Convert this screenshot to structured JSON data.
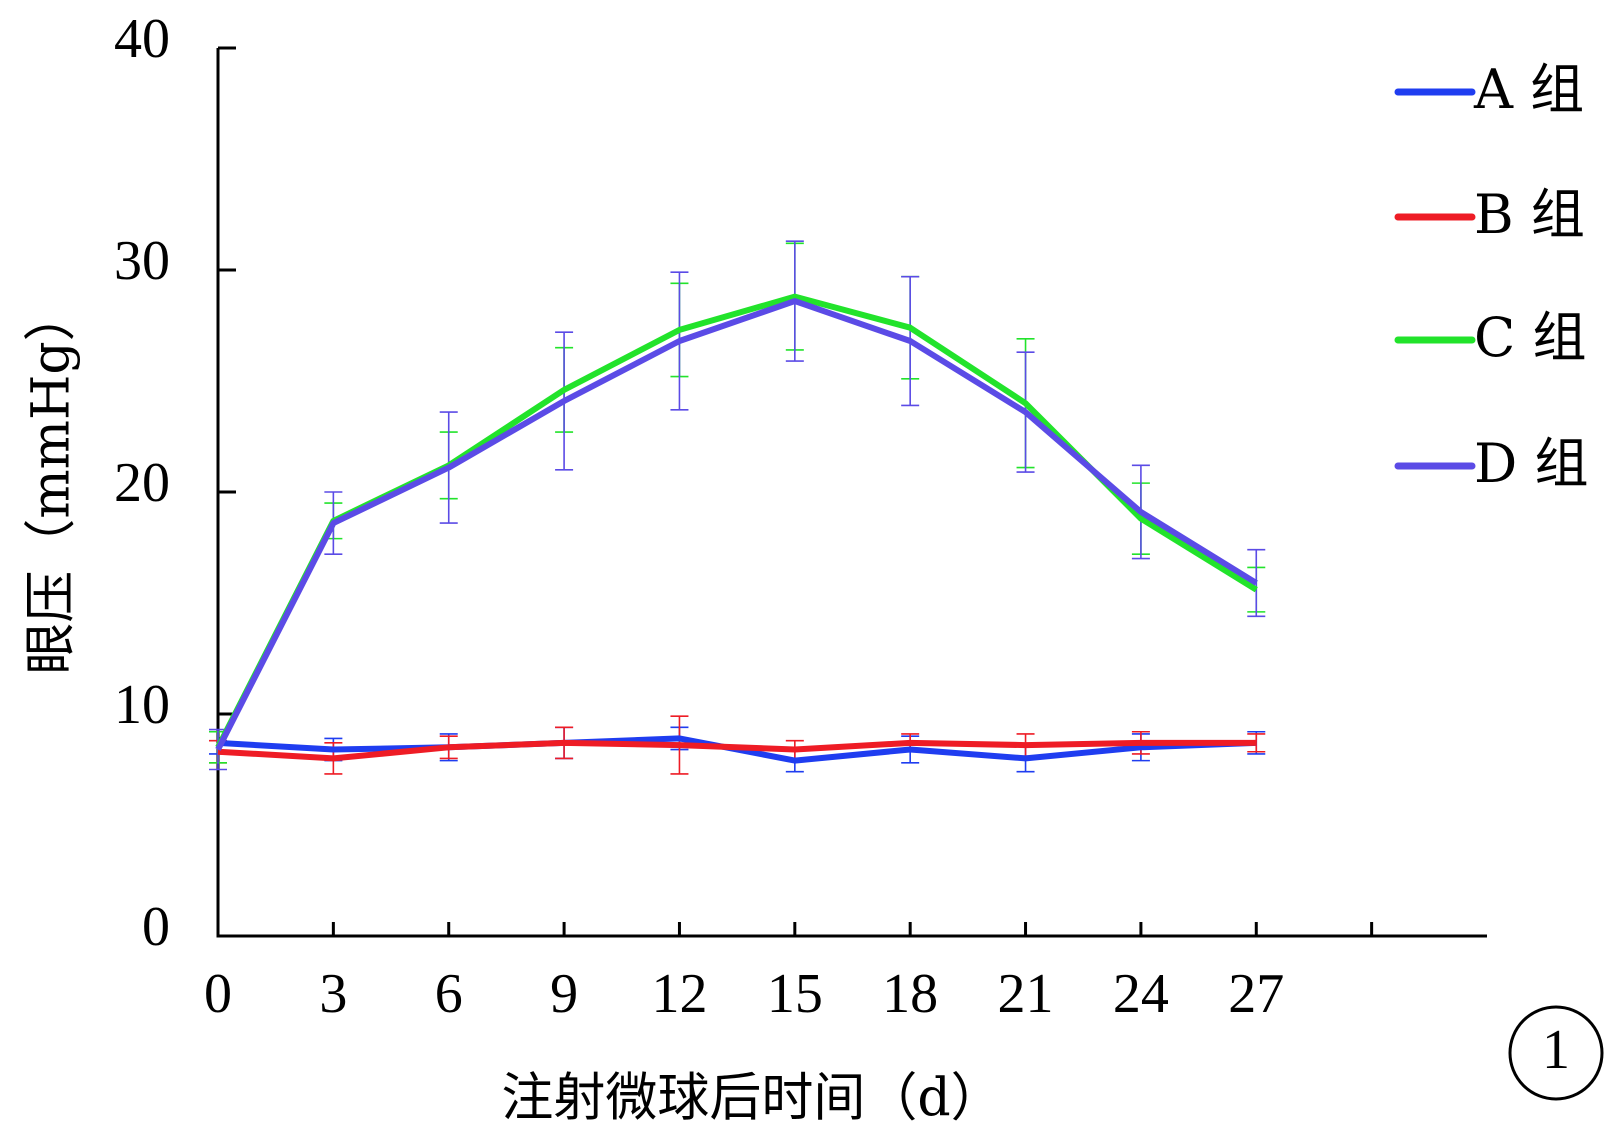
{
  "chart_data": {
    "type": "line",
    "xlabel": "注射微球后时间（d）",
    "ylabel": "眼压（mmHg）",
    "x_ticks": [
      "0",
      "3",
      "6",
      "9",
      "12",
      "15",
      "18",
      "21",
      "24",
      "27"
    ],
    "y_ticks": [
      "0",
      "10",
      "20",
      "30",
      "40"
    ],
    "xlim": [
      0,
      33
    ],
    "ylim": [
      0,
      40
    ],
    "x": [
      0,
      3,
      6,
      9,
      12,
      15,
      18,
      21,
      24,
      27
    ],
    "legend_position": "top-right",
    "panel_label": "1",
    "grid": false,
    "series": [
      {
        "name": "A 组",
        "color": "#1f3df0",
        "values": [
          8.7,
          8.4,
          8.5,
          8.7,
          8.9,
          7.9,
          8.4,
          8.0,
          8.5,
          8.7
        ],
        "errors": [
          0.5,
          0.5,
          0.6,
          0.7,
          0.5,
          0.5,
          0.6,
          0.6,
          0.6,
          0.5
        ]
      },
      {
        "name": "B 组",
        "color": "#ee1c25",
        "values": [
          8.3,
          8.0,
          8.5,
          8.7,
          8.6,
          8.4,
          8.7,
          8.6,
          8.7,
          8.7
        ],
        "errors": [
          0.5,
          0.7,
          0.5,
          0.7,
          1.3,
          0.4,
          0.4,
          0.5,
          0.5,
          0.4
        ]
      },
      {
        "name": "C 组",
        "color": "#22e32b",
        "values": [
          8.5,
          18.7,
          21.2,
          24.6,
          27.3,
          28.8,
          27.4,
          24.0,
          18.8,
          15.6
        ],
        "errors": [
          0.7,
          0.8,
          1.5,
          1.9,
          2.1,
          2.4,
          2.3,
          2.9,
          1.6,
          1.0
        ]
      },
      {
        "name": "D 组",
        "color": "#5b4be6",
        "values": [
          8.4,
          18.6,
          21.1,
          24.1,
          26.8,
          28.6,
          26.8,
          23.6,
          19.1,
          15.9
        ],
        "errors": [
          0.9,
          1.4,
          2.5,
          3.1,
          3.1,
          2.7,
          2.9,
          2.7,
          2.1,
          1.5
        ]
      }
    ]
  }
}
